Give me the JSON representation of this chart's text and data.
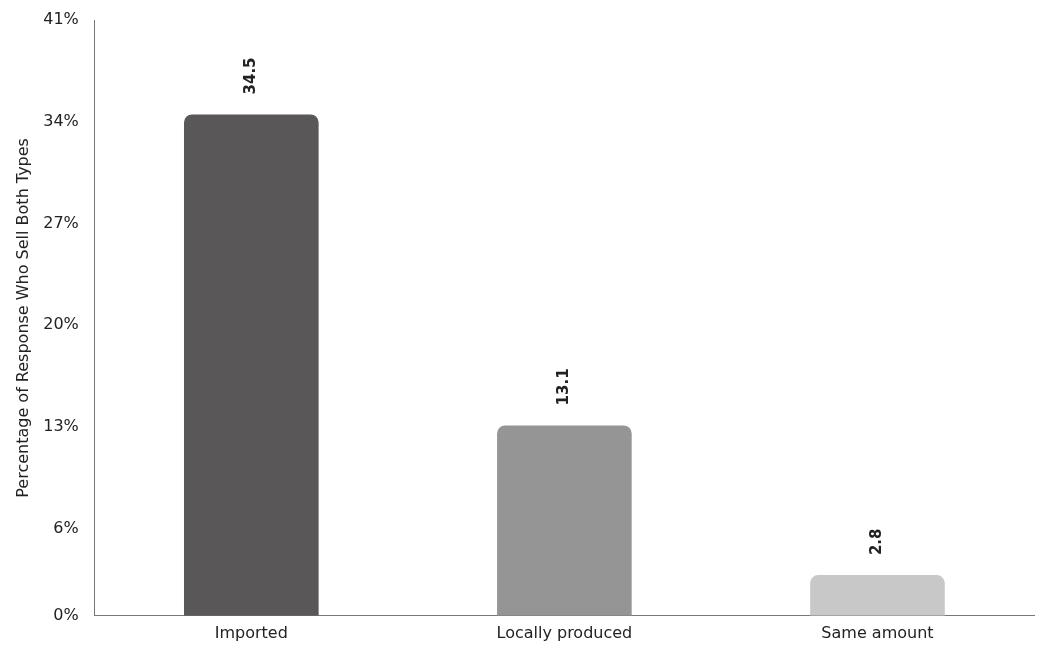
{
  "chart_data": {
    "type": "bar",
    "ylabel": "Percentage of Response Who Sell Both Types",
    "categories": [
      "Imported",
      "Locally produced",
      "Same amount"
    ],
    "values": [
      34.5,
      13.1,
      2.8
    ],
    "colors": [
      "#595757",
      "#959595",
      "#c8c8c8"
    ],
    "ylim": [
      0,
      41
    ],
    "yticks": [
      {
        "value": 0,
        "label": "0%"
      },
      {
        "value": 6,
        "label": "6%"
      },
      {
        "value": 13,
        "label": "13%"
      },
      {
        "value": 20,
        "label": "20%"
      },
      {
        "value": 27,
        "label": "27%"
      },
      {
        "value": 34,
        "label": "34%"
      },
      {
        "value": 41,
        "label": "41%"
      }
    ],
    "grid": false,
    "legend": false,
    "data_labels": true
  }
}
